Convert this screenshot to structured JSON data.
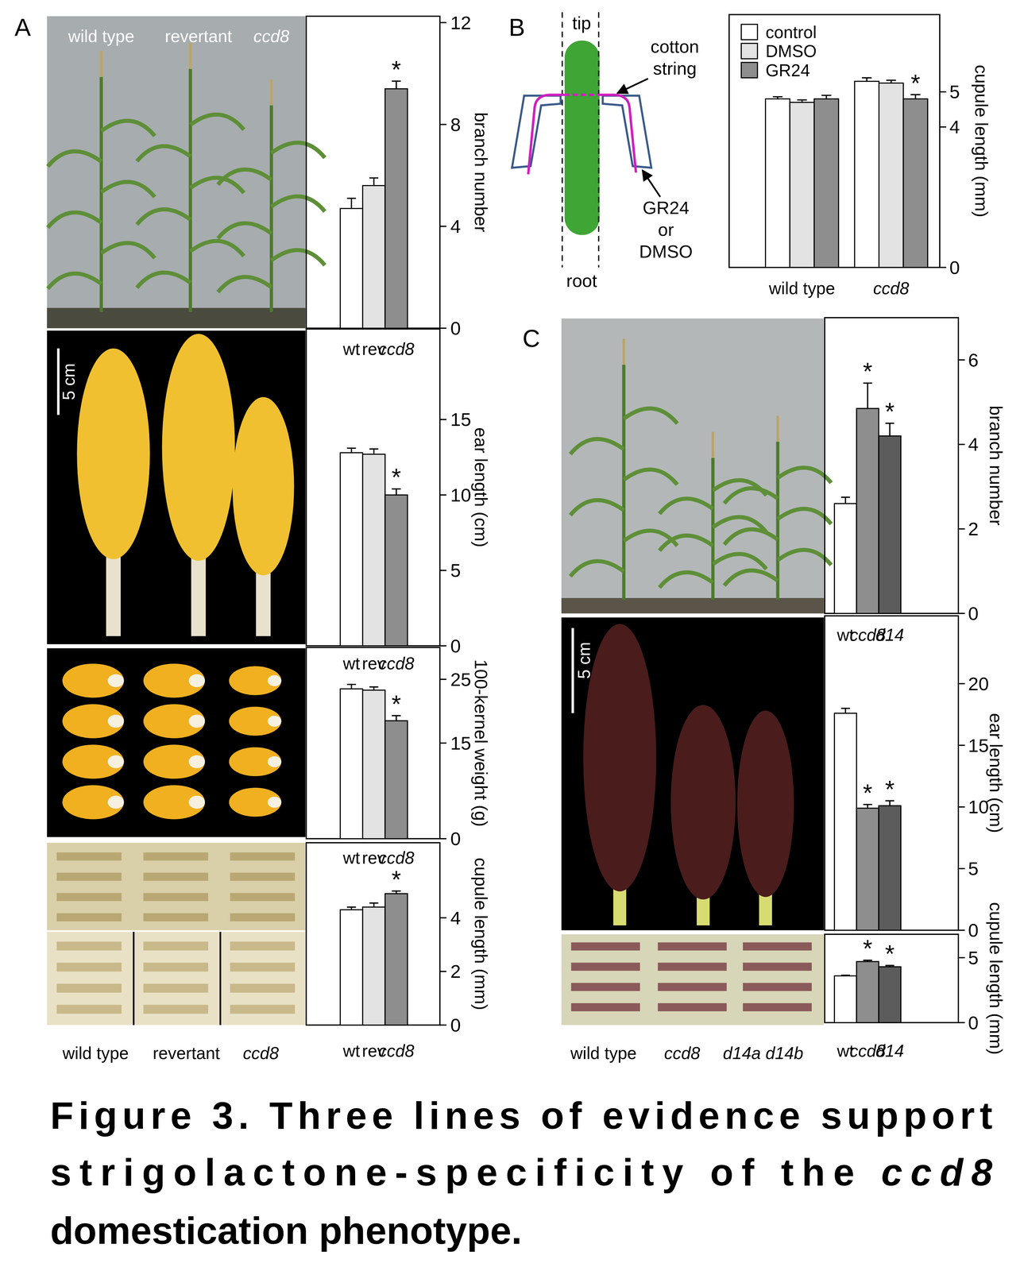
{
  "panel_labels": [
    "A",
    "B",
    "C"
  ],
  "photo_labels": {
    "a_plants": [
      {
        "text": "wild type"
      },
      {
        "text": "revertant"
      },
      {
        "text": "ccd8",
        "italic": true
      }
    ],
    "a_scale": "5 cm",
    "a_cupules": [
      {
        "text": "wild type"
      },
      {
        "text": "revertant"
      },
      {
        "text": "ccd8",
        "italic": true
      }
    ],
    "c_scale": "5 cm",
    "c_cupules": [
      {
        "text": "wild type"
      },
      {
        "text": "ccd8",
        "italic": true
      },
      {
        "text": "d14a d14b",
        "italic": true
      }
    ]
  },
  "diagram": {
    "tip": "tip",
    "root": "root",
    "string_label": [
      "cotton",
      "string"
    ],
    "treatment_label": [
      "GR24",
      "or",
      "DMSO"
    ]
  },
  "caption": [
    [
      {
        "text": "Figure 3. Three lines of evidence support"
      }
    ],
    [
      {
        "text": "strigolactone-specificity of the "
      },
      {
        "text": "ccd8",
        "italic": true
      }
    ],
    [
      {
        "text": "domestication phenotype."
      }
    ]
  ],
  "chart_data": [
    {
      "type": "bar",
      "ylabel": "branch number",
      "categories": [
        "wt",
        "rev",
        "ccd8"
      ],
      "values": [
        4.7,
        5.6,
        9.4
      ],
      "errors": [
        0.4,
        0.3,
        0.3
      ],
      "colors": [
        "#ffffff",
        "#e3e3e3",
        "#8e8e8e"
      ],
      "ylim": [
        0,
        12.25
      ],
      "yticks": [
        0,
        4,
        8,
        12
      ],
      "annotations": [
        {
          "text": "*",
          "index": 2
        }
      ]
    },
    {
      "type": "bar",
      "ylabel": "ear length (cm)",
      "categories": [
        "wt",
        "rev",
        "ccd8"
      ],
      "values": [
        12.8,
        12.7,
        10.0
      ],
      "errors": [
        0.3,
        0.35,
        0.4
      ],
      "colors": [
        "#ffffff",
        "#e3e3e3",
        "#8e8e8e"
      ],
      "ylim": [
        0,
        21
      ],
      "yticks": [
        0,
        5,
        10,
        15
      ],
      "annotations": [
        {
          "text": "*",
          "index": 2
        }
      ]
    },
    {
      "type": "bar",
      "ylabel": "100-kernel weight (g)",
      "categories": [
        "wt",
        "rev",
        "ccd8"
      ],
      "values": [
        23.5,
        23.3,
        18.5
      ],
      "errors": [
        0.7,
        0.5,
        0.8
      ],
      "colors": [
        "#ffffff",
        "#e3e3e3",
        "#8e8e8e"
      ],
      "ylim": [
        0,
        30
      ],
      "yticks": [
        0,
        15,
        25
      ],
      "annotations": [
        {
          "text": "*",
          "index": 2
        }
      ]
    },
    {
      "type": "bar",
      "ylabel": "cupule length (mm)",
      "categories": [
        "wt",
        "rev",
        "ccd8"
      ],
      "values": [
        4.3,
        4.4,
        4.9
      ],
      "errors": [
        0.1,
        0.15,
        0.1
      ],
      "colors": [
        "#ffffff",
        "#e3e3e3",
        "#8e8e8e"
      ],
      "ylim": [
        0,
        6.8
      ],
      "yticks": [
        0,
        2,
        4
      ],
      "annotations": [
        {
          "text": "*",
          "index": 2
        }
      ]
    },
    {
      "type": "bar",
      "ylabel": "cupule length (mm)",
      "categories": [
        "wild type",
        "ccd8"
      ],
      "series": [
        {
          "name": "control",
          "color": "#ffffff",
          "values": [
            4.8,
            5.3
          ],
          "errors": [
            0.06,
            0.1
          ]
        },
        {
          "name": "DMSO",
          "color": "#e3e3e3",
          "values": [
            4.7,
            5.25
          ],
          "errors": [
            0.07,
            0.08
          ]
        },
        {
          "name": "GR24",
          "color": "#8e8e8e",
          "values": [
            4.8,
            4.8
          ],
          "errors": [
            0.1,
            0.12
          ]
        }
      ],
      "ylim": [
        0,
        7.2
      ],
      "yticks": [
        0,
        4,
        5
      ],
      "legend": "upper left",
      "annotations": [
        {
          "text": "*",
          "index": 1,
          "series": 2
        }
      ]
    },
    {
      "type": "bar",
      "ylabel": "branch number",
      "categories": [
        "wt",
        "ccd8",
        "d14"
      ],
      "values": [
        2.6,
        4.85,
        4.2
      ],
      "errors": [
        0.15,
        0.6,
        0.3
      ],
      "colors": [
        "#ffffff",
        "#8e8e8e",
        "#5c5c5c"
      ],
      "ylim": [
        0,
        7
      ],
      "yticks": [
        0,
        2,
        4,
        6
      ],
      "annotations": [
        {
          "text": "*",
          "index": 1
        },
        {
          "text": "*",
          "index": 2
        }
      ]
    },
    {
      "type": "bar",
      "ylabel": "ear length (cm)",
      "categories": [
        "wt",
        "ccd8",
        "d14"
      ],
      "values": [
        17.6,
        9.9,
        10.1
      ],
      "errors": [
        0.4,
        0.3,
        0.4
      ],
      "colors": [
        "#ffffff",
        "#8e8e8e",
        "#5c5c5c"
      ],
      "ylim": [
        0,
        25.5
      ],
      "yticks": [
        0,
        5,
        10,
        15,
        20
      ],
      "tick_labels": "y",
      "annotations": [
        {
          "text": "*",
          "index": 1
        },
        {
          "text": "*",
          "index": 2
        }
      ]
    },
    {
      "type": "bar",
      "ylabel": "cupule length (mm)",
      "categories": [
        "wt",
        "ccd8",
        "d14"
      ],
      "values": [
        3.6,
        4.7,
        4.3
      ],
      "errors": [
        0.05,
        0.1,
        0.1
      ],
      "colors": [
        "#ffffff",
        "#8e8e8e",
        "#5c5c5c"
      ],
      "ylim": [
        0,
        6.8
      ],
      "yticks": [
        0,
        5
      ],
      "annotations": [
        {
          "text": "*",
          "index": 1
        },
        {
          "text": "*",
          "index": 2
        }
      ]
    }
  ]
}
